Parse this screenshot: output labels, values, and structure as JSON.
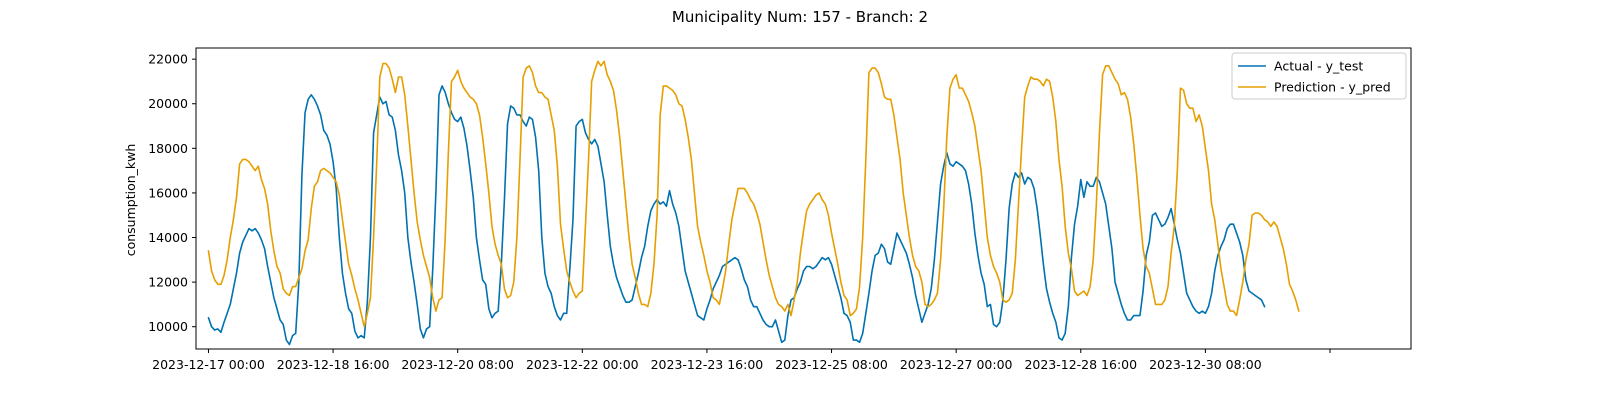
{
  "chart_data": {
    "type": "line",
    "title": "Municipality Num: 157 - Branch: 2",
    "xlabel": "",
    "ylabel": "consumption_kwh",
    "ylim": [
      9000,
      22500
    ],
    "xlim": [
      -2,
      193
    ],
    "y_ticks": [
      10000,
      12000,
      14000,
      16000,
      18000,
      20000,
      22000
    ],
    "x_tick_positions": [
      0,
      20,
      40,
      60,
      80,
      100,
      120,
      140,
      160,
      180
    ],
    "x_tick_labels": [
      "2023-12-17 00:00",
      "2023-12-18 16:00",
      "2023-12-20 08:00",
      "2023-12-22 00:00",
      "2023-12-23 16:00",
      "2023-12-25 08:00",
      "2023-12-27 00:00",
      "2023-12-28 16:00",
      "2023-12-30 08:00",
      ""
    ],
    "x_step_hours": 2,
    "grid": false,
    "legend_position": "top-right",
    "colors": {
      "actual": "#0072B2",
      "prediction": "#E69F00"
    },
    "series": [
      {
        "name": "Actual - y_test",
        "values": [
          10400,
          10000,
          9850,
          9900,
          9750,
          10200,
          10600,
          11000,
          11700,
          12400,
          13300,
          13800,
          14100,
          14400,
          14300,
          14400,
          14200,
          13900,
          13500,
          12700,
          12000,
          11300,
          10800,
          10300,
          10100,
          9400,
          9200,
          9600,
          9700,
          12000,
          16800,
          19600,
          20200,
          20400,
          20200,
          19900,
          19500,
          18800,
          18600,
          18200,
          17400,
          16200,
          14000,
          12400,
          11500,
          10800,
          10600,
          9800,
          9500,
          9600,
          9500,
          11100,
          14000,
          18700,
          19500,
          20300,
          20000,
          20100,
          19500,
          19400,
          18800,
          17700,
          17000,
          16000,
          14000,
          12900,
          12000,
          11000,
          9900,
          9500,
          9900,
          10000,
          12600,
          16000,
          20400,
          20800,
          20500,
          20000,
          19600,
          19300,
          19200,
          19400,
          18900,
          18100,
          17000,
          15800,
          14000,
          13000,
          12100,
          11900,
          10800,
          10400,
          10600,
          10700,
          12800,
          15700,
          19100,
          19900,
          19800,
          19500,
          19500,
          19200,
          19000,
          19400,
          19300,
          18500,
          17000,
          14000,
          12400,
          11800,
          11500,
          10900,
          10500,
          10300,
          10600,
          10600,
          12600,
          14800,
          19000,
          19200,
          19300,
          18700,
          18400,
          18200,
          18400,
          18100,
          17300,
          16500,
          15000,
          13600,
          12800,
          12200,
          11800,
          11400,
          11100,
          11100,
          11200,
          11800,
          12400,
          13100,
          13600,
          14500,
          15200,
          15500,
          15700,
          15500,
          15600,
          15400,
          16100,
          15500,
          15100,
          14500,
          13500,
          12500,
          12000,
          11500,
          11000,
          10500,
          10400,
          10300,
          10800,
          11200,
          11700,
          12000,
          12300,
          12700,
          12800,
          12900,
          13000,
          13100,
          13000,
          12600,
          12100,
          11800,
          11200,
          10900,
          10900,
          10600,
          10300,
          10100,
          10000,
          10000,
          10300,
          9800,
          9300,
          9400,
          10500,
          11200,
          11300,
          11700,
          12000,
          12500,
          12700,
          12700,
          12600,
          12700,
          12900,
          13100,
          13000,
          13100,
          12800,
          12300,
          11800,
          11300,
          10600,
          10500,
          10200,
          9400,
          9400,
          9300,
          9700,
          10600,
          11500,
          12500,
          13200,
          13300,
          13700,
          13500,
          12900,
          12800,
          13500,
          14200,
          13900,
          13600,
          13300,
          12800,
          12200,
          11400,
          10800,
          10200,
          10600,
          11000,
          11700,
          13000,
          14700,
          16400,
          17200,
          17800,
          17300,
          17200,
          17400,
          17300,
          17200,
          17000,
          16400,
          15500,
          14200,
          13200,
          12400,
          11900,
          10900,
          11000,
          10100,
          10000,
          10200,
          11200,
          13000,
          15300,
          16400,
          16900,
          16700,
          16900,
          16400,
          16700,
          16600,
          16200,
          15300,
          14100,
          12800,
          11700,
          11100,
          10600,
          10200,
          9500,
          9400,
          9700,
          10900,
          13100,
          14600,
          15400,
          16600,
          15800,
          16500,
          16300,
          16300,
          16700,
          16500,
          16000,
          15500,
          14500,
          13500,
          12000,
          11500,
          11000,
          10600,
          10300,
          10300,
          10500,
          10500,
          10500,
          11600,
          13200,
          13800,
          15000,
          15100,
          14800,
          14500,
          14600,
          14900,
          15300,
          14600,
          13900,
          13300,
          12400,
          11500,
          11200,
          10900,
          10700,
          10600,
          10700,
          10600,
          10900,
          11500,
          12500,
          13200,
          13600,
          13900,
          14400,
          14600,
          14600,
          14200,
          13800,
          13200,
          12100,
          11600,
          11500,
          11400,
          11300,
          11200,
          10900
        ],
        "x_step_index": 0.5
      },
      {
        "name": "Prediction - y_pred",
        "values": [
          13400,
          12500,
          12100,
          11900,
          11900,
          12300,
          13000,
          14000,
          14800,
          15800,
          17300,
          17500,
          17500,
          17400,
          17200,
          17000,
          17200,
          16600,
          16200,
          15500,
          14300,
          13400,
          12700,
          12400,
          11700,
          11500,
          11400,
          11800,
          11800,
          12200,
          12600,
          13400,
          13900,
          15300,
          16300,
          16500,
          17000,
          17100,
          17000,
          16900,
          16700,
          16500,
          15900,
          14800,
          13800,
          12800,
          12300,
          11700,
          11200,
          10600,
          10000,
          10600,
          11300,
          14000,
          17300,
          21200,
          21800,
          21800,
          21600,
          21100,
          20500,
          21200,
          21200,
          20400,
          19000,
          17500,
          16000,
          14700,
          13900,
          13200,
          12700,
          12200,
          11300,
          10700,
          11200,
          11300,
          14000,
          17800,
          21000,
          21200,
          21500,
          21000,
          20700,
          20500,
          20300,
          20200,
          20000,
          19500,
          18500,
          17300,
          16000,
          14500,
          13700,
          13200,
          12800,
          11700,
          11300,
          11400,
          12000,
          14000,
          17500,
          21200,
          21600,
          21700,
          21400,
          20800,
          20500,
          20500,
          20300,
          20200,
          19500,
          18800,
          17200,
          14600,
          13500,
          12500,
          12000,
          11600,
          11300,
          11500,
          11600,
          14500,
          17500,
          21000,
          21500,
          21900,
          21700,
          21900,
          21300,
          21000,
          20600,
          19700,
          18500,
          17000,
          15500,
          14000,
          12800,
          12200,
          11500,
          11000,
          11000,
          10900,
          11500,
          12800,
          15000,
          19500,
          20800,
          20800,
          20700,
          20600,
          20400,
          20000,
          19900,
          19300,
          18500,
          17500,
          16000,
          14500,
          13800,
          13200,
          12500,
          12000,
          11300,
          11200,
          11000,
          11700,
          12500,
          13700,
          14800,
          15500,
          16200,
          16200,
          16200,
          16000,
          15700,
          15500,
          15100,
          14600,
          13800,
          13000,
          12300,
          11800,
          11300,
          11000,
          10900,
          10700,
          11000,
          10500,
          11200,
          12000,
          13300,
          14300,
          15200,
          15500,
          15700,
          15900,
          16000,
          15700,
          15500,
          15000,
          14200,
          13500,
          12800,
          12000,
          11400,
          11200,
          10500,
          10600,
          10800,
          11800,
          14000,
          17500,
          21400,
          21600,
          21600,
          21400,
          20900,
          20300,
          20200,
          20200,
          19500,
          18500,
          17500,
          16000,
          15000,
          14000,
          13200,
          12700,
          12500,
          12000,
          11000,
          10900,
          11000,
          11200,
          11500,
          13000,
          15300,
          18500,
          20700,
          21100,
          21300,
          20700,
          20700,
          20400,
          20100,
          19600,
          19000,
          18000,
          17000,
          15500,
          14000,
          13200,
          12700,
          12400,
          12000,
          11200,
          11100,
          11200,
          11500,
          13000,
          15500,
          18000,
          20300,
          20800,
          21200,
          21100,
          21100,
          21000,
          20800,
          21100,
          21000,
          20300,
          19200,
          17500,
          16300,
          14500,
          13300,
          12600,
          11600,
          11400,
          11500,
          11600,
          11400,
          11800,
          13000,
          15500,
          18700,
          21300,
          21700,
          21700,
          21400,
          21100,
          20900,
          20400,
          20500,
          20200,
          19400,
          18200,
          16700,
          15000,
          13500,
          12700,
          12400,
          11700,
          11000,
          11000,
          11000,
          11200,
          11800,
          13300,
          14500,
          17000,
          20700,
          20600,
          20000,
          19800,
          19800,
          19200,
          19500,
          19000,
          18000,
          17000,
          15500,
          14800,
          13700,
          12600,
          11800,
          11000,
          10700,
          10700,
          10500,
          11200,
          12000,
          13000,
          13700,
          15000,
          15100,
          15100,
          15000,
          14800,
          14700,
          14500,
          14700,
          14500,
          14000,
          13500,
          12800,
          11900,
          11600,
          11200,
          10700
        ],
        "x_step_index": 0.5
      }
    ]
  }
}
